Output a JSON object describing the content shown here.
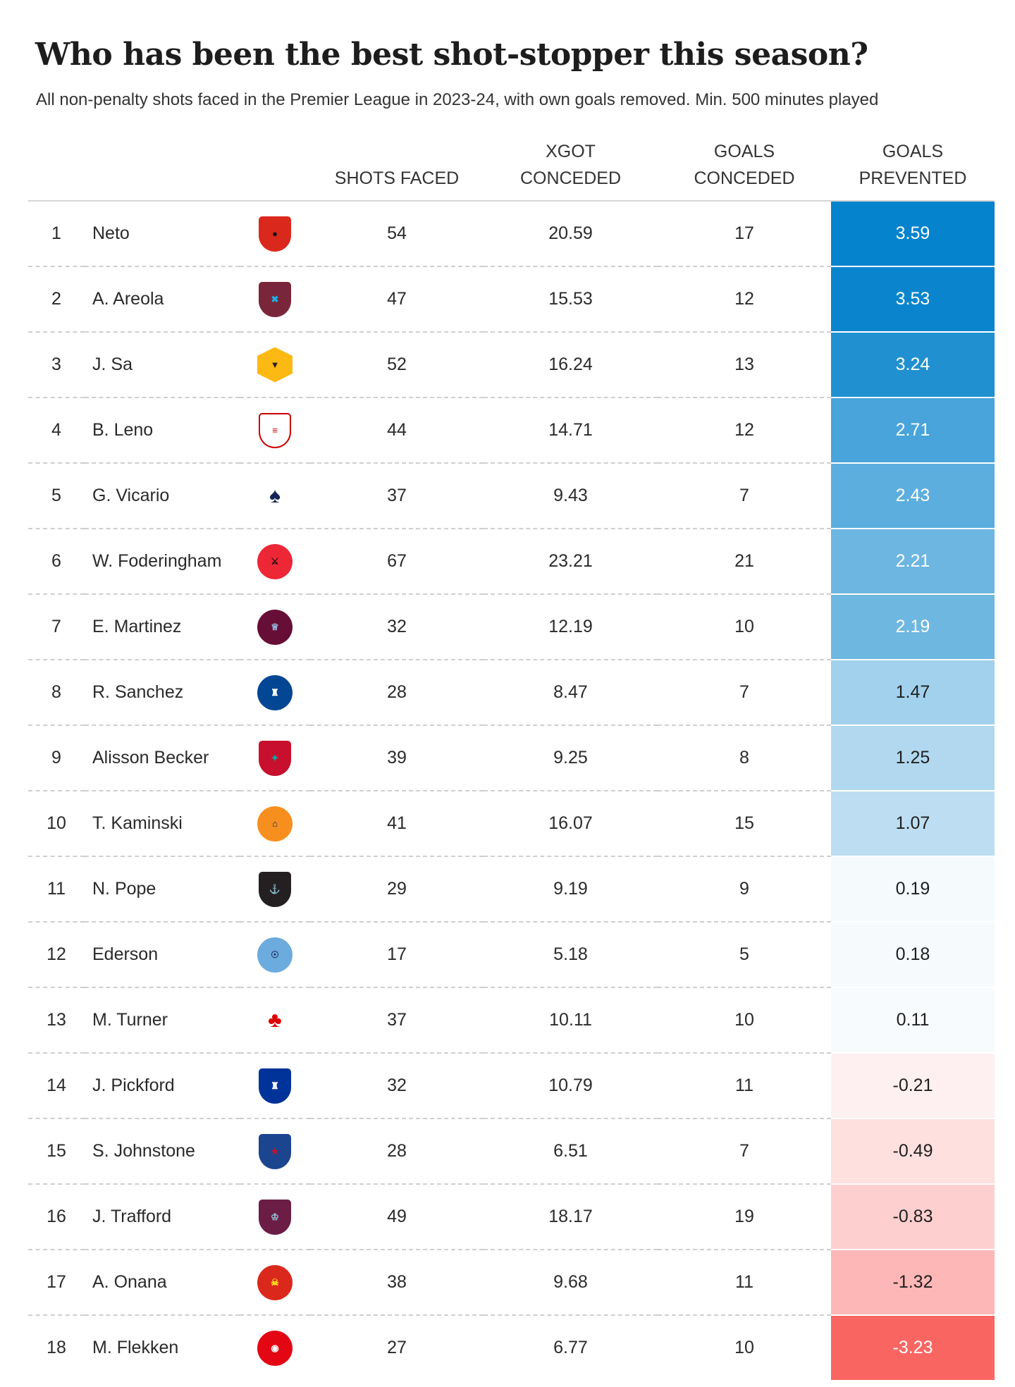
{
  "title": "Who has been the best shot-stopper this season?",
  "subtitle": "All non-penalty shots faced in the Premier League in 2023-24, with own goals removed. Min. 500 minutes played",
  "headers": {
    "shots": [
      "SHOTS FACED"
    ],
    "xgot": [
      "XGOT",
      "CONCEDED"
    ],
    "goals": [
      "GOALS",
      "CONCEDED"
    ],
    "prevented": [
      "GOALS",
      "PREVENTED"
    ]
  },
  "chart_data": {
    "type": "table",
    "title": "Who has been the best shot-stopper this season?",
    "columns": [
      "",
      "",
      "",
      "SHOTS FACED",
      "XGOT CONCEDED",
      "GOALS CONCEDED",
      "GOALS PREVENTED"
    ],
    "rows": [
      {
        "rank": "1",
        "player": "Neto",
        "club_icon": "bournemouth-crest-icon",
        "shots": "54",
        "xgot": "20.59",
        "goals": "17",
        "prevented": "3.59"
      },
      {
        "rank": "2",
        "player": "A. Areola",
        "club_icon": "west-ham-crest-icon",
        "shots": "47",
        "xgot": "15.53",
        "goals": "12",
        "prevented": "3.53"
      },
      {
        "rank": "3",
        "player": "J. Sa",
        "club_icon": "wolves-crest-icon",
        "shots": "52",
        "xgot": "16.24",
        "goals": "13",
        "prevented": "3.24"
      },
      {
        "rank": "4",
        "player": "B. Leno",
        "club_icon": "fulham-crest-icon",
        "shots": "44",
        "xgot": "14.71",
        "goals": "12",
        "prevented": "2.71"
      },
      {
        "rank": "5",
        "player": "G. Vicario",
        "club_icon": "tottenham-crest-icon",
        "shots": "37",
        "xgot": "9.43",
        "goals": "7",
        "prevented": "2.43"
      },
      {
        "rank": "6",
        "player": "W. Foderingham",
        "club_icon": "sheffield-united-crest-icon",
        "shots": "67",
        "xgot": "23.21",
        "goals": "21",
        "prevented": "2.21"
      },
      {
        "rank": "7",
        "player": "E. Martinez",
        "club_icon": "aston-villa-crest-icon",
        "shots": "32",
        "xgot": "12.19",
        "goals": "10",
        "prevented": "2.19"
      },
      {
        "rank": "8",
        "player": "R. Sanchez",
        "club_icon": "chelsea-crest-icon",
        "shots": "28",
        "xgot": "8.47",
        "goals": "7",
        "prevented": "1.47"
      },
      {
        "rank": "9",
        "player": "Alisson Becker",
        "club_icon": "liverpool-crest-icon",
        "shots": "39",
        "xgot": "9.25",
        "goals": "8",
        "prevented": "1.25"
      },
      {
        "rank": "10",
        "player": "T. Kaminski",
        "club_icon": "luton-town-crest-icon",
        "shots": "41",
        "xgot": "16.07",
        "goals": "15",
        "prevented": "1.07"
      },
      {
        "rank": "11",
        "player": "N. Pope",
        "club_icon": "newcastle-crest-icon",
        "shots": "29",
        "xgot": "9.19",
        "goals": "9",
        "prevented": "0.19"
      },
      {
        "rank": "12",
        "player": "Ederson",
        "club_icon": "manchester-city-crest-icon",
        "shots": "17",
        "xgot": "5.18",
        "goals": "5",
        "prevented": "0.18"
      },
      {
        "rank": "13",
        "player": "M. Turner",
        "club_icon": "nottingham-forest-crest-icon",
        "shots": "37",
        "xgot": "10.11",
        "goals": "10",
        "prevented": "0.11"
      },
      {
        "rank": "14",
        "player": "J. Pickford",
        "club_icon": "everton-crest-icon",
        "shots": "32",
        "xgot": "10.79",
        "goals": "11",
        "prevented": "-0.21"
      },
      {
        "rank": "15",
        "player": "S. Johnstone",
        "club_icon": "crystal-palace-crest-icon",
        "shots": "28",
        "xgot": "6.51",
        "goals": "7",
        "prevented": "-0.49"
      },
      {
        "rank": "16",
        "player": "J. Trafford",
        "club_icon": "burnley-crest-icon",
        "shots": "49",
        "xgot": "18.17",
        "goals": "19",
        "prevented": "-0.83"
      },
      {
        "rank": "17",
        "player": "A. Onana",
        "club_icon": "manchester-united-crest-icon",
        "shots": "38",
        "xgot": "9.68",
        "goals": "11",
        "prevented": "-1.32"
      },
      {
        "rank": "18",
        "player": "M. Flekken",
        "club_icon": "brentford-crest-icon",
        "shots": "27",
        "xgot": "6.77",
        "goals": "10",
        "prevented": "-3.23"
      }
    ]
  },
  "club_colors": {
    "bournemouth-crest-icon": [
      "#da291c",
      "#111111"
    ],
    "west-ham-crest-icon": [
      "#7a263a",
      "#1bb1e7"
    ],
    "wolves-crest-icon": [
      "#fdb913",
      "#231f20"
    ],
    "fulham-crest-icon": [
      "#ffffff",
      "#cc0000"
    ],
    "tottenham-crest-icon": [
      "#ffffff",
      "#132257"
    ],
    "sheffield-united-crest-icon": [
      "#ee2737",
      "#111111"
    ],
    "aston-villa-crest-icon": [
      "#670e36",
      "#95bfe5"
    ],
    "chelsea-crest-icon": [
      "#034694",
      "#ffffff"
    ],
    "liverpool-crest-icon": [
      "#c8102e",
      "#00b2a9"
    ],
    "luton-town-crest-icon": [
      "#f78f1e",
      "#002d62"
    ],
    "newcastle-crest-icon": [
      "#241f20",
      "#41b6e6"
    ],
    "manchester-city-crest-icon": [
      "#6cabdd",
      "#1c2c5b"
    ],
    "nottingham-forest-crest-icon": [
      "#ffffff",
      "#dd0000"
    ],
    "everton-crest-icon": [
      "#003399",
      "#ffffff"
    ],
    "crystal-palace-crest-icon": [
      "#1b458f",
      "#c4122e"
    ],
    "burnley-crest-icon": [
      "#6c1d45",
      "#99d6ea"
    ],
    "manchester-united-crest-icon": [
      "#da291c",
      "#fbe122"
    ],
    "brentford-crest-icon": [
      "#e30613",
      "#ffffff"
    ]
  },
  "scale_colors": {
    "positive": "#0583cc",
    "negative": "#f96662"
  }
}
